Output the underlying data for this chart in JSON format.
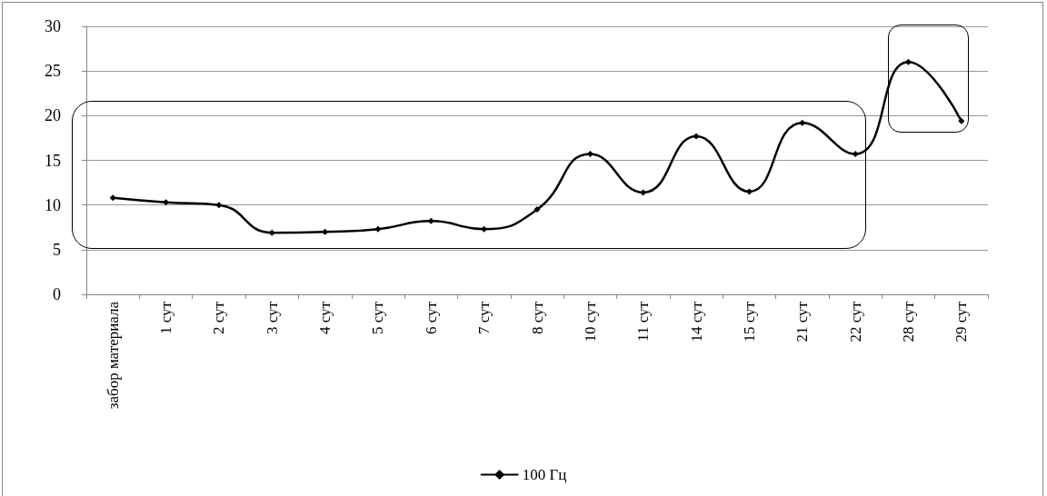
{
  "chart_data": {
    "type": "line",
    "categories": [
      "забор материала",
      "1 сут",
      "2 сут",
      "3 сут",
      "4 сут",
      "5 сут",
      "6 сут",
      "7 сут",
      "8 сут",
      "10 сут",
      "11 сут",
      "14 сут",
      "15 сут",
      "21 сут",
      "22 сут",
      "28 сут",
      "29 сут"
    ],
    "series": [
      {
        "name": "100 Гц",
        "color": "#000000",
        "values": [
          10.8,
          10.3,
          10.0,
          6.9,
          7.0,
          7.3,
          8.2,
          7.3,
          9.5,
          15.7,
          11.4,
          17.7,
          11.5,
          19.2,
          15.7,
          26.0,
          19.4
        ]
      }
    ],
    "ylim": [
      0,
      30
    ],
    "yticks": [
      0,
      5,
      10,
      15,
      20,
      25,
      30
    ],
    "grid": "y",
    "legend": "bottom",
    "marker": "diamond",
    "line_style": "solid"
  }
}
